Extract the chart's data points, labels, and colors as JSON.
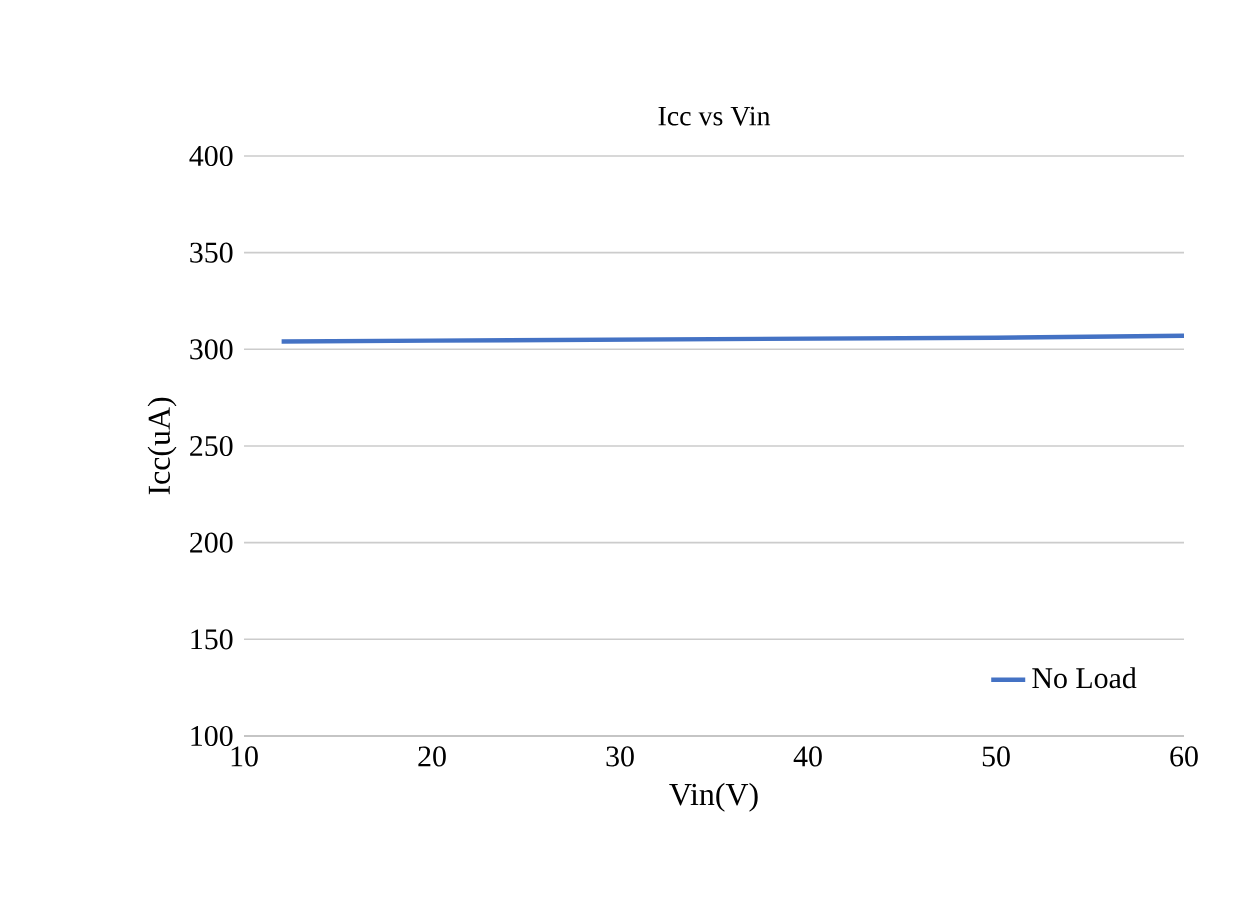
{
  "chart_data": {
    "type": "line",
    "title": "Icc vs Vin",
    "xlabel": "Vin(V)",
    "ylabel": "Icc(uA)",
    "x": [
      12,
      20,
      30,
      40,
      50,
      60
    ],
    "series": [
      {
        "name": "No Load",
        "color": "#4472c4",
        "values": [
          304,
          304.5,
          305,
          305.5,
          306,
          307
        ]
      }
    ],
    "xlim": [
      10,
      60
    ],
    "xticks": [
      10,
      20,
      30,
      40,
      50,
      60
    ],
    "ylim": [
      100,
      400
    ],
    "yticks": [
      100,
      150,
      200,
      250,
      300,
      350,
      400
    ],
    "grid": "y",
    "legend": "bottom right",
    "marker": "none",
    "line_style": "solid"
  }
}
